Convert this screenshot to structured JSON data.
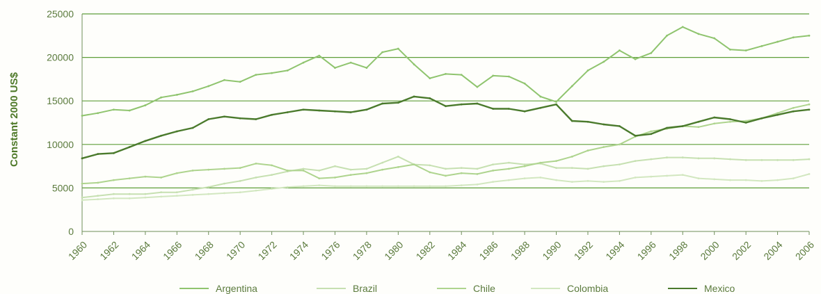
{
  "chart_data": {
    "type": "line",
    "ylabel": "Constant 2000 US$",
    "ylim": [
      0,
      25000
    ],
    "yticks": [
      0,
      5000,
      10000,
      15000,
      20000,
      25000
    ],
    "xlim": [
      1960,
      2006
    ],
    "xticks": [
      1960,
      1962,
      1964,
      1966,
      1968,
      1970,
      1972,
      1974,
      1976,
      1978,
      1980,
      1982,
      1984,
      1986,
      1988,
      1990,
      1992,
      1994,
      1996,
      1998,
      2000,
      2002,
      2004,
      2006
    ],
    "grid": "horizontal",
    "legend": "bottom",
    "colors": {
      "Argentina": "#8fc46e",
      "Brazil": "#c6e0b1",
      "Chile": "#aed48e",
      "Colombia": "#d2e7c0",
      "Mexico": "#4a7a2c",
      "grid": "#5e9e3a",
      "axis": "#6f8f5a"
    },
    "x": [
      1960,
      1961,
      1962,
      1963,
      1964,
      1965,
      1966,
      1967,
      1968,
      1969,
      1970,
      1971,
      1972,
      1973,
      1974,
      1975,
      1976,
      1977,
      1978,
      1979,
      1980,
      1981,
      1982,
      1983,
      1984,
      1985,
      1986,
      1987,
      1988,
      1989,
      1990,
      1991,
      1992,
      1993,
      1994,
      1995,
      1996,
      1997,
      1998,
      1999,
      2000,
      2001,
      2002,
      2003,
      2004,
      2005,
      2006
    ],
    "series": [
      {
        "name": "Argentina",
        "values": [
          13300,
          13600,
          14000,
          13900,
          14500,
          15400,
          15700,
          16100,
          16700,
          17400,
          17200,
          18000,
          18200,
          18500,
          19400,
          20200,
          18800,
          19400,
          18800,
          20600,
          21000,
          19200,
          17600,
          18100,
          18000,
          16600,
          17900,
          17800,
          17000,
          15500,
          14900,
          16700,
          18500,
          19500,
          20800,
          19800,
          20500,
          22500,
          23500,
          22700,
          22200,
          20900,
          20800,
          21300,
          21800,
          22300,
          22500
        ]
      },
      {
        "name": "Brazil",
        "values": [
          3900,
          4100,
          4300,
          4300,
          4300,
          4500,
          4500,
          4800,
          5100,
          5500,
          5800,
          6200,
          6500,
          6900,
          7200,
          7000,
          7500,
          7100,
          7200,
          7900,
          8600,
          7700,
          7600,
          7200,
          7300,
          7200,
          7700,
          7900,
          7700,
          7800,
          7300,
          7300,
          7200,
          7500,
          7700,
          8100,
          8300,
          8500,
          8500,
          8400,
          8400,
          8300,
          8200,
          8200,
          8200,
          8200,
          8300
        ]
      },
      {
        "name": "Chile",
        "values": [
          5500,
          5600,
          5900,
          6100,
          6300,
          6200,
          6700,
          7000,
          7100,
          7200,
          7300,
          7800,
          7600,
          7000,
          7000,
          6100,
          6200,
          6500,
          6700,
          7100,
          7400,
          7700,
          6800,
          6400,
          6700,
          6600,
          7000,
          7200,
          7500,
          7900,
          8100,
          8600,
          9300,
          9700,
          10000,
          10900,
          11500,
          11800,
          12100,
          12000,
          12400,
          12600,
          12700,
          13000,
          13600,
          14200,
          14600
        ]
      },
      {
        "name": "Colombia",
        "values": [
          3600,
          3700,
          3800,
          3800,
          3900,
          4000,
          4100,
          4200,
          4300,
          4400,
          4500,
          4700,
          4900,
          5100,
          5200,
          5300,
          5200,
          5200,
          5200,
          5200,
          5200,
          5200,
          5200,
          5200,
          5300,
          5400,
          5700,
          5900,
          6100,
          6200,
          5900,
          5700,
          5800,
          5700,
          5800,
          6200,
          6300,
          6400,
          6500,
          6100,
          6000,
          5900,
          5900,
          5800,
          5900,
          6100,
          6600
        ]
      },
      {
        "name": "Mexico",
        "values": [
          8400,
          8900,
          9000,
          9700,
          10400,
          11000,
          11500,
          11900,
          12900,
          13200,
          13000,
          12900,
          13400,
          13700,
          14000,
          13900,
          13800,
          13700,
          14000,
          14700,
          14800,
          15500,
          15300,
          14400,
          14600,
          14700,
          14100,
          14100,
          13800,
          14200,
          14600,
          12700,
          12600,
          12300,
          12100,
          11000,
          11200,
          11900,
          12100,
          12600,
          13100,
          12900,
          12500,
          13000,
          13400,
          13800,
          14000
        ]
      }
    ]
  }
}
